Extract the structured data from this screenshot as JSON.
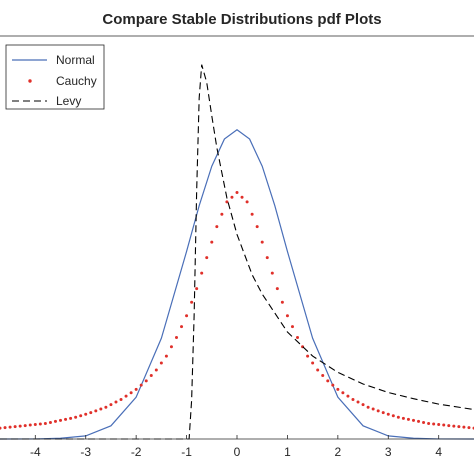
{
  "chart_data": {
    "type": "line",
    "title": "Compare Stable Distributions pdf Plots",
    "xlim": [
      -4.7,
      4.7
    ],
    "ylim": [
      0,
      0.52
    ],
    "xticks": [
      -4,
      -3,
      -2,
      -1,
      0,
      1,
      2,
      3,
      4
    ],
    "grid": false,
    "legend_position": "top-left",
    "series": [
      {
        "name": "Normal",
        "style": "solid",
        "color": "#4a6fb8",
        "x": [
          -4.7,
          -4.0,
          -3.5,
          -3.0,
          -2.5,
          -2.0,
          -1.5,
          -1.0,
          -0.75,
          -0.5,
          -0.25,
          0.0,
          0.25,
          0.5,
          0.75,
          1.0,
          1.5,
          2.0,
          2.5,
          3.0,
          3.5,
          4.0,
          4.7
        ],
        "y": [
          0.0,
          0.0001,
          0.001,
          0.004,
          0.017,
          0.054,
          0.13,
          0.242,
          0.301,
          0.352,
          0.387,
          0.399,
          0.387,
          0.352,
          0.301,
          0.242,
          0.13,
          0.054,
          0.017,
          0.004,
          0.001,
          0.0001,
          0.0
        ]
      },
      {
        "name": "Cauchy",
        "style": "dotted",
        "color": "#e0302a",
        "x": [
          -4.7,
          -4.4,
          -4.1,
          -3.8,
          -3.5,
          -3.2,
          -2.9,
          -2.6,
          -2.3,
          -2.0,
          -1.8,
          -1.6,
          -1.4,
          -1.2,
          -1.0,
          -0.8,
          -0.6,
          -0.4,
          -0.2,
          0.0,
          0.2,
          0.4,
          0.6,
          0.8,
          1.0,
          1.2,
          1.4,
          1.6,
          1.8,
          2.0,
          2.3,
          2.6,
          2.9,
          3.2,
          3.5,
          3.8,
          4.1,
          4.4,
          4.7
        ],
        "y": [
          0.014,
          0.016,
          0.018,
          0.02,
          0.024,
          0.028,
          0.034,
          0.041,
          0.051,
          0.064,
          0.075,
          0.089,
          0.107,
          0.131,
          0.159,
          0.194,
          0.234,
          0.274,
          0.306,
          0.318,
          0.306,
          0.274,
          0.234,
          0.194,
          0.159,
          0.131,
          0.107,
          0.089,
          0.075,
          0.064,
          0.051,
          0.041,
          0.034,
          0.028,
          0.024,
          0.02,
          0.018,
          0.016,
          0.014
        ]
      },
      {
        "name": "Levy",
        "style": "dashed",
        "color": "#000000",
        "x": [
          -4.7,
          -0.95,
          -0.9,
          -0.85,
          -0.8,
          -0.75,
          -0.7,
          -0.6,
          -0.5,
          -0.4,
          -0.2,
          0.0,
          0.3,
          0.5,
          1.0,
          1.5,
          2.0,
          2.5,
          3.0,
          3.5,
          4.0,
          4.7
        ],
        "y": [
          0.0,
          0.0,
          0.05,
          0.16,
          0.32,
          0.44,
          0.483,
          0.46,
          0.417,
          0.376,
          0.311,
          0.264,
          0.212,
          0.187,
          0.138,
          0.107,
          0.086,
          0.071,
          0.06,
          0.052,
          0.045,
          0.038
        ]
      }
    ]
  }
}
